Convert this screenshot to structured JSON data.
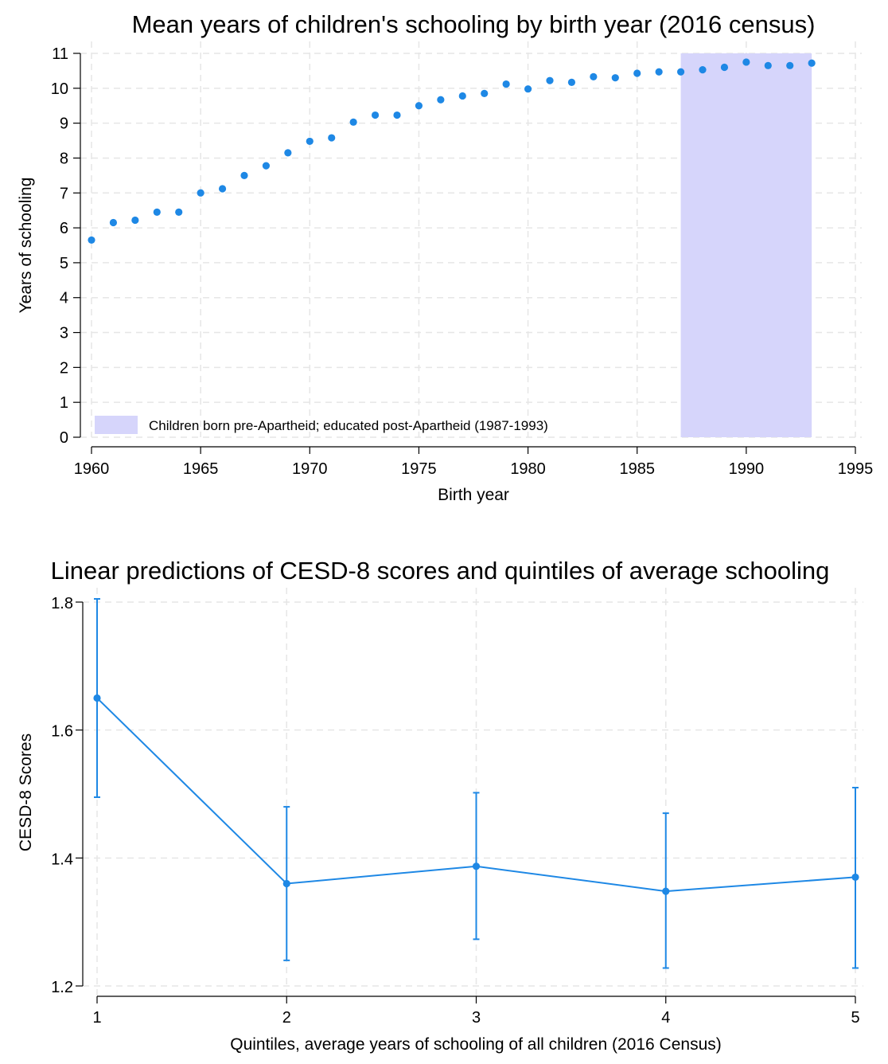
{
  "chart_data": [
    {
      "type": "scatter",
      "title": "Mean years of children's schooling by birth year (2016 census)",
      "xlabel": "Birth year",
      "ylabel": "Years of schooling",
      "xlim": [
        1960,
        1995
      ],
      "ylim": [
        0,
        11
      ],
      "xticks": [
        "1960",
        "1965",
        "1970",
        "1975",
        "1980",
        "1985",
        "1990",
        "1995"
      ],
      "yticks": [
        "0",
        "1",
        "2",
        "3",
        "4",
        "5",
        "6",
        "7",
        "8",
        "9",
        "10",
        "11"
      ],
      "grid": true,
      "legend_position": "bottom-left",
      "shaded_region": {
        "x_start": 1987,
        "x_end": 1993,
        "color": "#d6d5fb",
        "label": "Children born pre-Apartheid; educated post-Apartheid (1987-1993)"
      },
      "marker_color": "#1e88e5",
      "x": [
        1960,
        1961,
        1962,
        1963,
        1964,
        1965,
        1966,
        1967,
        1968,
        1969,
        1970,
        1971,
        1972,
        1973,
        1974,
        1975,
        1976,
        1977,
        1978,
        1979,
        1980,
        1981,
        1982,
        1983,
        1984,
        1985,
        1986,
        1987,
        1988,
        1989,
        1990,
        1991,
        1992,
        1993
      ],
      "y": [
        5.65,
        6.15,
        6.22,
        6.45,
        6.45,
        7.0,
        7.12,
        7.5,
        7.78,
        8.15,
        8.48,
        8.58,
        9.03,
        9.23,
        9.23,
        9.5,
        9.67,
        9.78,
        9.85,
        10.12,
        9.98,
        10.22,
        10.17,
        10.33,
        10.3,
        10.43,
        10.47,
        10.47,
        10.53,
        10.6,
        10.75,
        10.65,
        10.65,
        10.72
      ]
    },
    {
      "type": "line",
      "title": "Linear predictions of CESD-8 scores and quintiles of average schooling",
      "xlabel": "Quintiles, average years of schooling of all children (2016 Census)",
      "ylabel": "CESD-8 Scores",
      "xlim": [
        1,
        5
      ],
      "ylim": [
        1.2,
        1.8
      ],
      "xticks": [
        "1",
        "2",
        "3",
        "4",
        "5"
      ],
      "yticks": [
        "1.2",
        "1.4",
        "1.6",
        "1.8"
      ],
      "grid": true,
      "line_color": "#1e88e5",
      "x": [
        1,
        2,
        3,
        4,
        5
      ],
      "y": [
        1.65,
        1.36,
        1.387,
        1.348,
        1.37
      ],
      "ci_lower": [
        1.495,
        1.24,
        1.273,
        1.228,
        1.228
      ],
      "ci_upper": [
        1.805,
        1.48,
        1.502,
        1.47,
        1.51
      ]
    }
  ]
}
